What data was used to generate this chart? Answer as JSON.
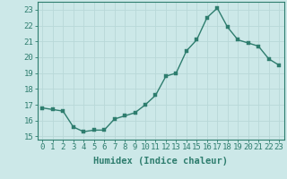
{
  "x": [
    0,
    1,
    2,
    3,
    4,
    5,
    6,
    7,
    8,
    9,
    10,
    11,
    12,
    13,
    14,
    15,
    16,
    17,
    18,
    19,
    20,
    21,
    22,
    23
  ],
  "y": [
    16.8,
    16.7,
    16.6,
    15.6,
    15.3,
    15.4,
    15.4,
    16.1,
    16.3,
    16.5,
    17.0,
    17.6,
    18.8,
    19.0,
    20.4,
    21.1,
    22.5,
    23.1,
    21.9,
    21.1,
    20.9,
    20.7,
    19.9,
    19.5
  ],
  "line_color": "#2e7d6e",
  "marker_color": "#2e7d6e",
  "bg_color": "#cce8e8",
  "grid_color": "#b8d8d8",
  "xlabel": "Humidex (Indice chaleur)",
  "ylabel": "",
  "xlim": [
    -0.5,
    23.5
  ],
  "ylim": [
    14.8,
    23.5
  ],
  "yticks": [
    15,
    16,
    17,
    18,
    19,
    20,
    21,
    22,
    23
  ],
  "xticks": [
    0,
    1,
    2,
    3,
    4,
    5,
    6,
    7,
    8,
    9,
    10,
    11,
    12,
    13,
    14,
    15,
    16,
    17,
    18,
    19,
    20,
    21,
    22,
    23
  ],
  "tick_fontsize": 6.5,
  "label_fontsize": 7.5,
  "marker_size": 2.5,
  "line_width": 1.0
}
